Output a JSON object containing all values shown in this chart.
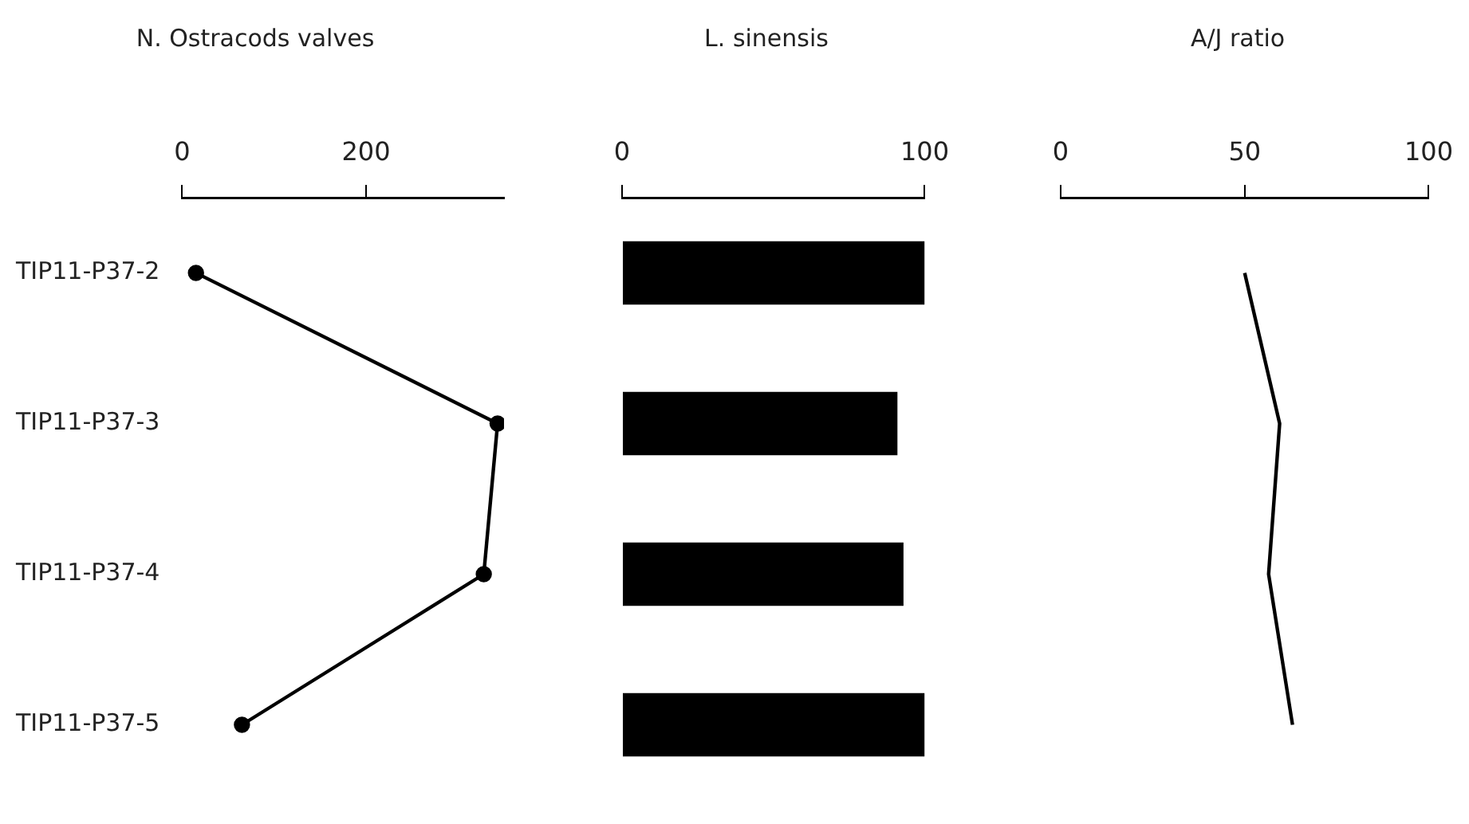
{
  "chart_data": [
    {
      "type": "line",
      "title": "N. Ostracods valves",
      "orientation": "horizontal",
      "categories": [
        "TIP11-P37-2",
        "TIP11-P37-3",
        "TIP11-P37-4",
        "TIP11-P37-5"
      ],
      "series": [
        {
          "color": "#000000",
          "values": [
            15,
            343,
            328,
            65
          ]
        }
      ],
      "xlim": [
        0,
        350
      ],
      "xticks": [
        0,
        200
      ],
      "marker": "circle",
      "line_style": "solid"
    },
    {
      "type": "bar",
      "title": "L. sinensis",
      "orientation": "horizontal",
      "categories": [
        null,
        null,
        null,
        null
      ],
      "series": [
        {
          "color": "#000000",
          "values": [
            100,
            91,
            93,
            100
          ]
        }
      ],
      "xlim": [
        0,
        100
      ],
      "xticks": [
        0,
        100
      ]
    },
    {
      "type": "line",
      "title": "A/J ratio",
      "orientation": "horizontal",
      "categories": [
        null,
        null,
        null,
        null
      ],
      "series": [
        {
          "color": "#000000",
          "values": [
            50,
            59.5,
            56.5,
            63
          ]
        }
      ],
      "xlim": [
        0,
        100
      ],
      "xticks": [
        0,
        50,
        100
      ],
      "marker": "none",
      "line_style": "solid"
    }
  ]
}
